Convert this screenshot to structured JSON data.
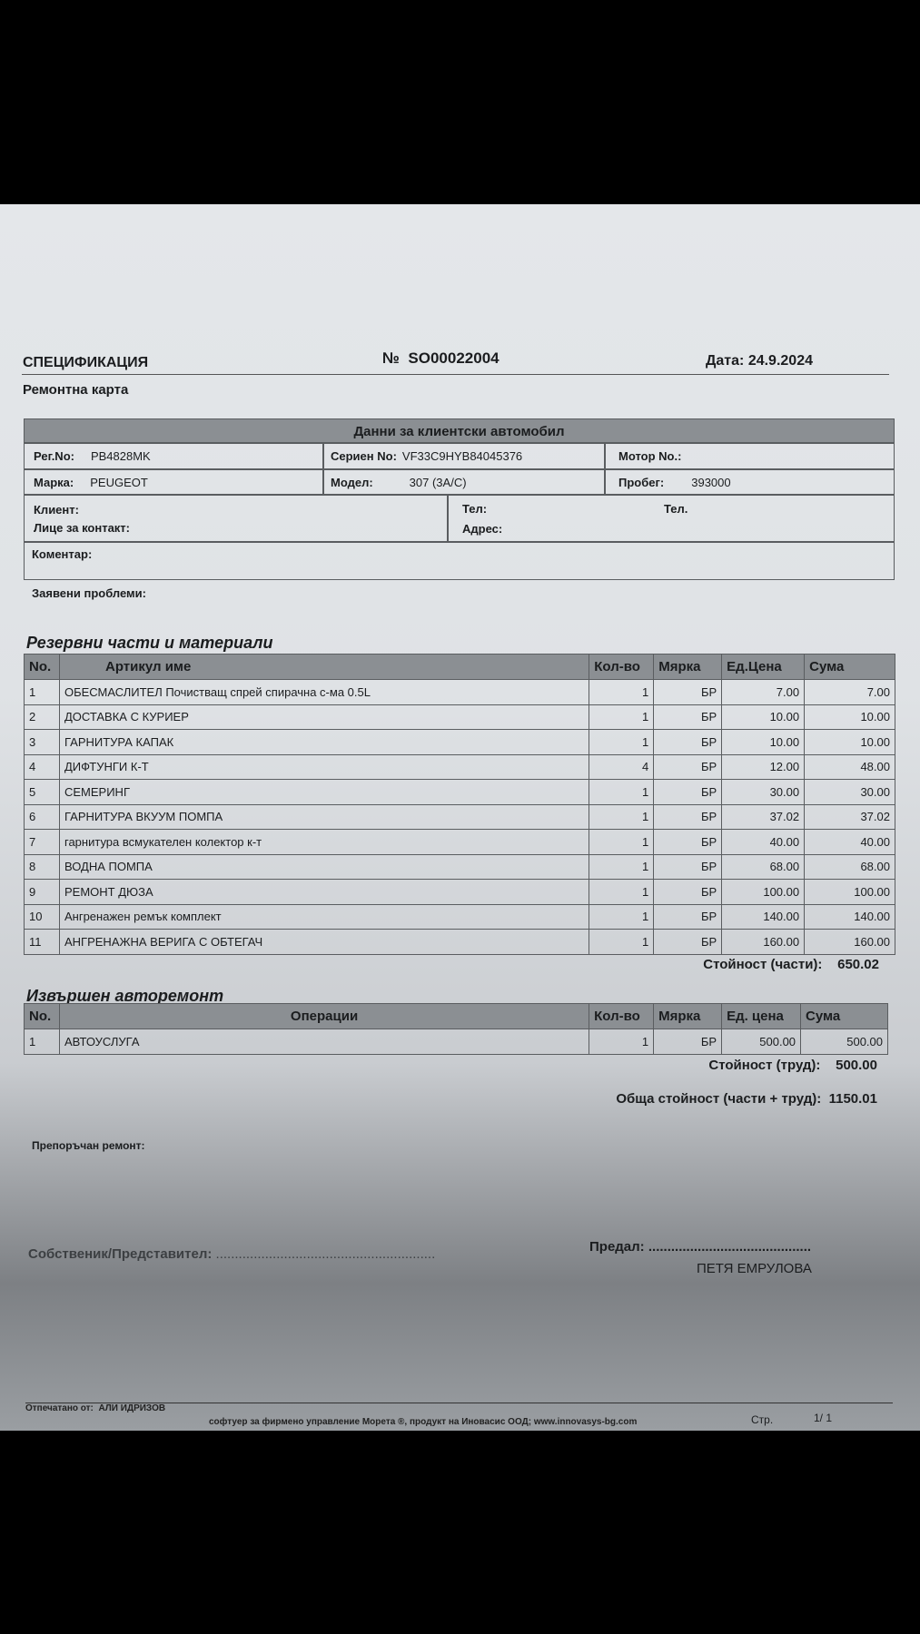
{
  "header": {
    "title": "СПЕЦИФИКАЦИЯ",
    "number_label": "№",
    "number": "SO00022004",
    "date_label": "Дата:",
    "date": "24.9.2024",
    "subtitle": "Ремонтна карта"
  },
  "vehicle": {
    "title": "Данни за клиентски автомобил",
    "reg_label": "Рег.No:",
    "reg": "PB4828MK",
    "serial_label": "Сериен No:",
    "serial": "VF33C9HYB84045376",
    "motor_label": "Мотор No.:",
    "make_label": "Марка:",
    "make": "PEUGEOT",
    "model_label": "Модел:",
    "model": "307 (3A/C)",
    "mileage_label": "Пробег:",
    "mileage": "393000",
    "client_label": "Клиент:",
    "contact_label": "Лице за контакт:",
    "tel_label": "Тел:",
    "tel2_label": "Тел.",
    "address_label": "Адрес:",
    "comment_label": "Коментар:"
  },
  "problems_label": "Заявени проблеми:",
  "parts": {
    "title": "Резервни части и материали",
    "columns": [
      "No.",
      "Артикул име",
      "Кол-во",
      "Мярка",
      "Ед.Цена",
      "Сума"
    ],
    "rows": [
      [
        "1",
        "ОБЕСМАСЛИТЕЛ Почистващ спрей спирачна с-ма 0.5L",
        "1",
        "БР",
        "7.00",
        "7.00"
      ],
      [
        "2",
        "ДОСТАВКА С КУРИЕР",
        "1",
        "БР",
        "10.00",
        "10.00"
      ],
      [
        "3",
        "ГАРНИТУРА КАПАК",
        "1",
        "БР",
        "10.00",
        "10.00"
      ],
      [
        "4",
        "ДИФТУНГИ К-Т",
        "4",
        "БР",
        "12.00",
        "48.00"
      ],
      [
        "5",
        "СЕМЕРИНГ",
        "1",
        "БР",
        "30.00",
        "30.00"
      ],
      [
        "6",
        "ГАРНИТУРА ВКУУМ ПОМПА",
        "1",
        "БР",
        "37.02",
        "37.02"
      ],
      [
        "7",
        "гарнитура всмукателен колектор к-т",
        "1",
        "БР",
        "40.00",
        "40.00"
      ],
      [
        "8",
        "ВОДНА ПОМПА",
        "1",
        "БР",
        "68.00",
        "68.00"
      ],
      [
        "9",
        "РЕМОНТ ДЮЗА",
        "1",
        "БР",
        "100.00",
        "100.00"
      ],
      [
        "10",
        "Ангренажен ремък комплект",
        "1",
        "БР",
        "140.00",
        "140.00"
      ],
      [
        "11",
        "АНГРЕНАЖНА ВЕРИГА С ОБТЕГАЧ",
        "1",
        "БР",
        "160.00",
        "160.00"
      ]
    ],
    "total_label": "Стойност (части):",
    "total": "650.02"
  },
  "labor": {
    "title": "Извършен авторемонт",
    "columns": [
      "No.",
      "Операции",
      "Кол-во",
      "Мярка",
      "Ед. цена",
      "Сума"
    ],
    "rows": [
      [
        "1",
        "АВТОУСЛУГА",
        "1",
        "БР",
        "500.00",
        "500.00"
      ]
    ],
    "total_label": "Стойност (труд):",
    "total": "500.00"
  },
  "grand_total_label": "Обща стойност (части + труд):",
  "grand_total": "1150.01",
  "recommended_label": "Препоръчан ремонт:",
  "signatures": {
    "owner_label": "Собственик/Представител:",
    "owner_dots": "..........................................................",
    "handed_label": "Предал:",
    "handed_dots": "...........................................",
    "handed_name": "ПЕТЯ ЕМРУЛОВА"
  },
  "footer": {
    "printed_label": "Отпечатано от:",
    "printed_by": "АЛИ ИДРИЗОВ",
    "software": "софтуер за фирмено управление Морета ®, продукт на Иновасис ООД; www.innovasys-bg.com",
    "page_label": "Стр.",
    "page": "1/ 1"
  }
}
